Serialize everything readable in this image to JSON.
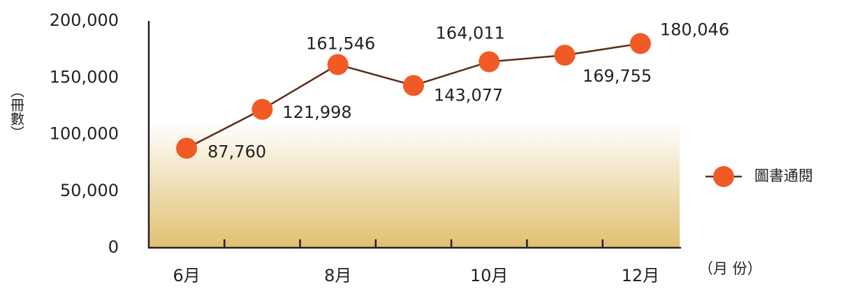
{
  "chart_data": {
    "type": "line",
    "categories": [
      "6月",
      null,
      "8月",
      null,
      "10月",
      null,
      "12月"
    ],
    "series": [
      {
        "name": "圖書通閱",
        "color": "#f15a24",
        "values": [
          87760,
          121998,
          161546,
          143077,
          164011,
          169755,
          180046
        ],
        "value_labels": [
          "87,760",
          "121,998",
          "161,546",
          "143,077",
          "164,011",
          "169,755",
          "180,046"
        ]
      }
    ],
    "y_label": "（冊數）",
    "x_label": "（月 份）",
    "ylim": [
      0,
      200000
    ],
    "yticks": [
      0,
      {
        "value": 50000,
        "label": "50,000"
      },
      {
        "value": 100000,
        "label": "100,000"
      },
      {
        "value": 150000,
        "label": "150,000"
      },
      {
        "value": 200000,
        "label": "200,000"
      }
    ],
    "legend": "right"
  }
}
